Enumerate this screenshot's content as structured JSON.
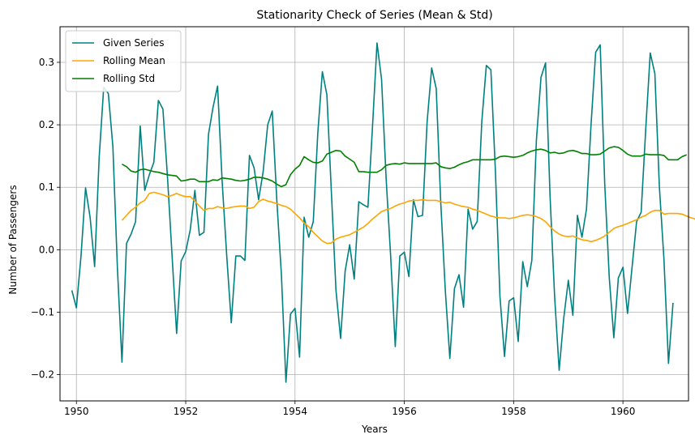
{
  "chart_data": {
    "type": "line",
    "title": "Stationarity Check of Series (Mean & Std)",
    "xlabel": "Years",
    "ylabel": "Number of Passengers",
    "xlim": [
      1949.7,
      1961.2
    ],
    "ylim": [
      -0.242,
      0.357
    ],
    "xticks": [
      1950,
      1952,
      1954,
      1956,
      1958,
      1960
    ],
    "yticks": [
      -0.2,
      -0.1,
      0.0,
      0.1,
      0.2,
      0.3
    ],
    "xtick_labels": [
      "1950",
      "1952",
      "1954",
      "1956",
      "1958",
      "1960"
    ],
    "ytick_labels": [
      "−0.2",
      "−0.1",
      "0.0",
      "0.1",
      "0.2",
      "0.3"
    ],
    "grid": true,
    "legend_position": "top-left",
    "series": [
      {
        "name": "Given Series",
        "color": "#008080",
        "x_start": 1949.917,
        "x_step": 0.0833333,
        "values": [
          -0.065,
          -0.093,
          -0.01,
          0.099,
          0.052,
          -0.027,
          0.148,
          0.26,
          0.25,
          0.165,
          -0.03,
          -0.18,
          0.01,
          0.025,
          0.045,
          0.198,
          0.095,
          0.12,
          0.14,
          0.239,
          0.225,
          0.115,
          -0.01,
          -0.134,
          -0.018,
          -0.003,
          0.032,
          0.095,
          0.023,
          0.028,
          0.185,
          0.228,
          0.262,
          0.11,
          -0.01,
          -0.117,
          -0.01,
          -0.01,
          -0.017,
          0.151,
          0.131,
          0.08,
          0.125,
          0.2,
          0.222,
          0.08,
          -0.04,
          -0.212,
          -0.103,
          -0.094,
          -0.172,
          0.052,
          0.02,
          0.045,
          0.187,
          0.285,
          0.248,
          0.09,
          -0.065,
          -0.142,
          -0.034,
          0.008,
          -0.047,
          0.077,
          0.072,
          0.068,
          0.196,
          0.331,
          0.273,
          0.115,
          -0.01,
          -0.155,
          -0.01,
          -0.004,
          -0.043,
          0.08,
          0.053,
          0.055,
          0.205,
          0.291,
          0.258,
          0.075,
          -0.065,
          -0.174,
          -0.062,
          -0.04,
          -0.092,
          0.065,
          0.033,
          0.045,
          0.205,
          0.295,
          0.288,
          0.125,
          -0.075,
          -0.171,
          -0.082,
          -0.077,
          -0.147,
          -0.019,
          -0.059,
          -0.017,
          0.175,
          0.276,
          0.299,
          0.085,
          -0.075,
          -0.193,
          -0.11,
          -0.049,
          -0.105,
          0.055,
          0.02,
          0.065,
          0.2,
          0.316,
          0.328,
          0.105,
          -0.045,
          -0.141,
          -0.045,
          -0.028,
          -0.102,
          -0.028,
          0.045,
          0.06,
          0.192,
          0.315,
          0.282,
          0.1,
          -0.015,
          -0.182,
          -0.085
        ]
      },
      {
        "name": "Rolling Mean",
        "color": "#ffa500",
        "x_start": 1950.833,
        "x_step": 0.0833333,
        "values": [
          0.047,
          0.055,
          0.063,
          0.068,
          0.075,
          0.079,
          0.09,
          0.092,
          0.09,
          0.088,
          0.085,
          0.087,
          0.09,
          0.087,
          0.085,
          0.085,
          0.078,
          0.07,
          0.063,
          0.066,
          0.066,
          0.069,
          0.067,
          0.066,
          0.068,
          0.069,
          0.07,
          0.07,
          0.066,
          0.068,
          0.077,
          0.081,
          0.078,
          0.076,
          0.074,
          0.071,
          0.069,
          0.065,
          0.058,
          0.051,
          0.043,
          0.037,
          0.028,
          0.021,
          0.014,
          0.01,
          0.011,
          0.017,
          0.02,
          0.022,
          0.024,
          0.028,
          0.032,
          0.036,
          0.042,
          0.049,
          0.055,
          0.061,
          0.064,
          0.066,
          0.07,
          0.073,
          0.075,
          0.078,
          0.079,
          0.079,
          0.08,
          0.079,
          0.079,
          0.079,
          0.077,
          0.075,
          0.076,
          0.073,
          0.071,
          0.069,
          0.068,
          0.065,
          0.063,
          0.06,
          0.057,
          0.054,
          0.052,
          0.051,
          0.051,
          0.05,
          0.051,
          0.053,
          0.055,
          0.056,
          0.055,
          0.053,
          0.05,
          0.045,
          0.037,
          0.03,
          0.025,
          0.022,
          0.021,
          0.022,
          0.019,
          0.016,
          0.015,
          0.013,
          0.015,
          0.018,
          0.022,
          0.028,
          0.034,
          0.037,
          0.039,
          0.042,
          0.045,
          0.048,
          0.052,
          0.055,
          0.06,
          0.063,
          0.063,
          0.057,
          0.058,
          0.058,
          0.058,
          0.057,
          0.054,
          0.051,
          0.049,
          0.047,
          0.044
        ]
      },
      {
        "name": "Rolling Std",
        "color": "#008000",
        "x_start": 1950.833,
        "x_step": 0.0833333,
        "values": [
          0.137,
          0.133,
          0.126,
          0.124,
          0.128,
          0.129,
          0.127,
          0.125,
          0.124,
          0.122,
          0.12,
          0.119,
          0.118,
          0.11,
          0.111,
          0.113,
          0.113,
          0.109,
          0.109,
          0.109,
          0.112,
          0.111,
          0.115,
          0.114,
          0.113,
          0.111,
          0.11,
          0.111,
          0.113,
          0.116,
          0.116,
          0.115,
          0.113,
          0.11,
          0.105,
          0.101,
          0.104,
          0.12,
          0.129,
          0.135,
          0.149,
          0.144,
          0.14,
          0.139,
          0.142,
          0.153,
          0.156,
          0.159,
          0.158,
          0.15,
          0.145,
          0.14,
          0.125,
          0.125,
          0.124,
          0.124,
          0.124,
          0.128,
          0.135,
          0.137,
          0.138,
          0.137,
          0.139,
          0.138,
          0.138,
          0.138,
          0.138,
          0.138,
          0.138,
          0.139,
          0.133,
          0.131,
          0.13,
          0.132,
          0.136,
          0.139,
          0.141,
          0.144,
          0.144,
          0.144,
          0.144,
          0.144,
          0.145,
          0.149,
          0.15,
          0.149,
          0.148,
          0.149,
          0.151,
          0.155,
          0.158,
          0.16,
          0.161,
          0.159,
          0.155,
          0.156,
          0.154,
          0.155,
          0.158,
          0.159,
          0.157,
          0.154,
          0.154,
          0.152,
          0.152,
          0.153,
          0.158,
          0.163,
          0.165,
          0.164,
          0.159,
          0.153,
          0.15,
          0.15,
          0.15,
          0.153,
          0.152,
          0.152,
          0.152,
          0.151,
          0.144,
          0.144,
          0.144,
          0.149,
          0.152
        ]
      }
    ]
  }
}
